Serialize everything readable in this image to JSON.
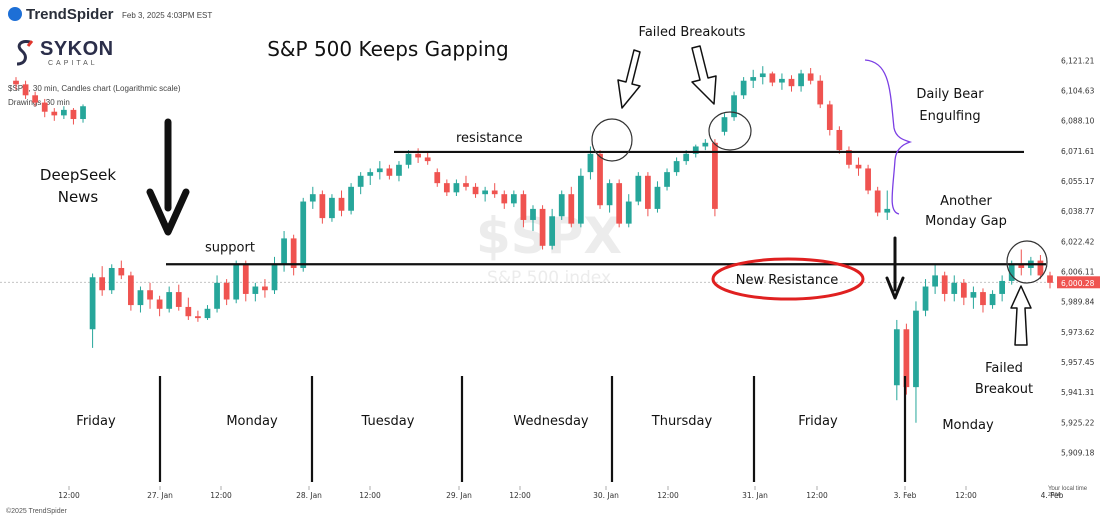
{
  "header": {
    "brand": "TrendSpider",
    "timestamp": "Feb 3, 2025 4:03PM EST",
    "logo_word": "SYKON",
    "logo_sub": "CAPITAL",
    "symbol_line": "$SPX, 30 min, Candles chart (Logarithmic scale)",
    "drawings_line": "Drawings, 30 min",
    "copyright": "©2025 TrendSpider",
    "timezone_label": "Your local time zone"
  },
  "watermark": {
    "ticker": "$SPX",
    "name": "S&P 500 index"
  },
  "chart_data": {
    "type": "candlestick",
    "title": "S&P 500 Keeps Gapping",
    "y_scale": "log",
    "ylim": [
      5902,
      6128
    ],
    "y_ticks": [
      "6,121.21",
      "6,104.63",
      "6,088.10",
      "6,071.61",
      "6,055.17",
      "6,038.77",
      "6,022.42",
      "6,006.11",
      "5,989.84",
      "5,973.62",
      "5,957.45",
      "5,941.31",
      "5,925.22",
      "5,909.18"
    ],
    "x_ticks": [
      "12:00",
      "27. Jan",
      "12:00",
      "28. Jan",
      "12:00",
      "29. Jan",
      "12:00",
      "30. Jan",
      "12:00",
      "31. Jan",
      "12:00",
      "3. Feb",
      "12:00",
      "4. Feb"
    ],
    "last_price": "6,000.28",
    "colors": {
      "up": "#26a69a",
      "down": "#ef5350",
      "annotation": "#111111",
      "circle_red": "#e02020",
      "brace": "#7b3fe4"
    },
    "day_labels": [
      "Friday",
      "Monday",
      "Tuesday",
      "Wednesday",
      "Thursday",
      "Friday",
      "Monday"
    ],
    "levels": [
      {
        "name": "resistance",
        "label": "resistance",
        "price": 6071
      },
      {
        "name": "support",
        "label": "support",
        "price": 6010
      }
    ],
    "annotations": {
      "deepseek": "DeepSeek\nNews",
      "failed_breakouts": "Failed Breakouts",
      "daily_bear": "Daily Bear\nEngulfing",
      "another_gap": "Another\nMonday  Gap",
      "new_resistance": "New Resistance",
      "failed_breakout": "Failed\nBreakout"
    },
    "candles": [
      {
        "o": 6110,
        "h": 6112,
        "l": 6105,
        "c": 6108
      },
      {
        "o": 6108,
        "h": 6110,
        "l": 6100,
        "c": 6102
      },
      {
        "o": 6102,
        "h": 6104,
        "l": 6096,
        "c": 6098
      },
      {
        "o": 6098,
        "h": 6100,
        "l": 6090,
        "c": 6093
      },
      {
        "o": 6093,
        "h": 6095,
        "l": 6088,
        "c": 6091
      },
      {
        "o": 6091,
        "h": 6096,
        "l": 6089,
        "c": 6094
      },
      {
        "o": 6094,
        "h": 6095,
        "l": 6086,
        "c": 6089
      },
      {
        "o": 6089,
        "h": 6097,
        "l": 6087,
        "c": 6096
      },
      {
        "o": 5975,
        "h": 6005,
        "l": 5965,
        "c": 6003
      },
      {
        "o": 6003,
        "h": 6009,
        "l": 5993,
        "c": 5996
      },
      {
        "o": 5996,
        "h": 6010,
        "l": 5994,
        "c": 6008
      },
      {
        "o": 6008,
        "h": 6012,
        "l": 6002,
        "c": 6004
      },
      {
        "o": 6004,
        "h": 6006,
        "l": 5985,
        "c": 5988
      },
      {
        "o": 5988,
        "h": 5998,
        "l": 5984,
        "c": 5996
      },
      {
        "o": 5996,
        "h": 6000,
        "l": 5986,
        "c": 5991
      },
      {
        "o": 5991,
        "h": 5993,
        "l": 5982,
        "c": 5986
      },
      {
        "o": 5986,
        "h": 5998,
        "l": 5984,
        "c": 5995
      },
      {
        "o": 5995,
        "h": 5999,
        "l": 5985,
        "c": 5987
      },
      {
        "o": 5987,
        "h": 5992,
        "l": 5980,
        "c": 5982
      },
      {
        "o": 5982,
        "h": 5985,
        "l": 5979,
        "c": 5981
      },
      {
        "o": 5981,
        "h": 5988,
        "l": 5980,
        "c": 5986
      },
      {
        "o": 5986,
        "h": 6004,
        "l": 5984,
        "c": 6000
      },
      {
        "o": 6000,
        "h": 6002,
        "l": 5988,
        "c": 5991
      },
      {
        "o": 5991,
        "h": 6012,
        "l": 5989,
        "c": 6010
      },
      {
        "o": 6010,
        "h": 6012,
        "l": 5990,
        "c": 5994
      },
      {
        "o": 5994,
        "h": 6000,
        "l": 5990,
        "c": 5998
      },
      {
        "o": 5998,
        "h": 6002,
        "l": 5992,
        "c": 5996
      },
      {
        "o": 5996,
        "h": 6014,
        "l": 5994,
        "c": 6010
      },
      {
        "o": 6010,
        "h": 6028,
        "l": 6006,
        "c": 6024
      },
      {
        "o": 6024,
        "h": 6026,
        "l": 6004,
        "c": 6008
      },
      {
        "o": 6008,
        "h": 6046,
        "l": 6006,
        "c": 6044
      },
      {
        "o": 6044,
        "h": 6052,
        "l": 6040,
        "c": 6048
      },
      {
        "o": 6048,
        "h": 6050,
        "l": 6032,
        "c": 6035
      },
      {
        "o": 6035,
        "h": 6048,
        "l": 6033,
        "c": 6046
      },
      {
        "o": 6046,
        "h": 6050,
        "l": 6036,
        "c": 6039
      },
      {
        "o": 6039,
        "h": 6054,
        "l": 6037,
        "c": 6052
      },
      {
        "o": 6052,
        "h": 6060,
        "l": 6048,
        "c": 6058
      },
      {
        "o": 6058,
        "h": 6062,
        "l": 6053,
        "c": 6060
      },
      {
        "o": 6060,
        "h": 6066,
        "l": 6056,
        "c": 6062
      },
      {
        "o": 6062,
        "h": 6064,
        "l": 6056,
        "c": 6058
      },
      {
        "o": 6058,
        "h": 6066,
        "l": 6055,
        "c": 6064
      },
      {
        "o": 6064,
        "h": 6072,
        "l": 6062,
        "c": 6070
      },
      {
        "o": 6070,
        "h": 6073,
        "l": 6065,
        "c": 6068
      },
      {
        "o": 6068,
        "h": 6071,
        "l": 6064,
        "c": 6066
      },
      {
        "o": 6060,
        "h": 6062,
        "l": 6052,
        "c": 6054
      },
      {
        "o": 6054,
        "h": 6056,
        "l": 6047,
        "c": 6049
      },
      {
        "o": 6049,
        "h": 6056,
        "l": 6047,
        "c": 6054
      },
      {
        "o": 6054,
        "h": 6058,
        "l": 6050,
        "c": 6052
      },
      {
        "o": 6052,
        "h": 6054,
        "l": 6046,
        "c": 6048
      },
      {
        "o": 6048,
        "h": 6052,
        "l": 6044,
        "c": 6050
      },
      {
        "o": 6050,
        "h": 6054,
        "l": 6046,
        "c": 6048
      },
      {
        "o": 6048,
        "h": 6050,
        "l": 6040,
        "c": 6043
      },
      {
        "o": 6043,
        "h": 6050,
        "l": 6041,
        "c": 6048
      },
      {
        "o": 6048,
        "h": 6050,
        "l": 6030,
        "c": 6034
      },
      {
        "o": 6034,
        "h": 6042,
        "l": 6028,
        "c": 6040
      },
      {
        "o": 6040,
        "h": 6042,
        "l": 6018,
        "c": 6020
      },
      {
        "o": 6020,
        "h": 6040,
        "l": 6018,
        "c": 6036
      },
      {
        "o": 6036,
        "h": 6050,
        "l": 6034,
        "c": 6048
      },
      {
        "o": 6048,
        "h": 6052,
        "l": 6030,
        "c": 6032
      },
      {
        "o": 6032,
        "h": 6062,
        "l": 6030,
        "c": 6058
      },
      {
        "o": 6060,
        "h": 6074,
        "l": 6056,
        "c": 6070
      },
      {
        "o": 6070,
        "h": 6072,
        "l": 6040,
        "c": 6042
      },
      {
        "o": 6042,
        "h": 6056,
        "l": 6038,
        "c": 6054
      },
      {
        "o": 6054,
        "h": 6056,
        "l": 6030,
        "c": 6032
      },
      {
        "o": 6032,
        "h": 6048,
        "l": 6030,
        "c": 6044
      },
      {
        "o": 6044,
        "h": 6060,
        "l": 6042,
        "c": 6058
      },
      {
        "o": 6058,
        "h": 6060,
        "l": 6036,
        "c": 6040
      },
      {
        "o": 6040,
        "h": 6055,
        "l": 6038,
        "c": 6052
      },
      {
        "o": 6052,
        "h": 6062,
        "l": 6050,
        "c": 6060
      },
      {
        "o": 6060,
        "h": 6068,
        "l": 6058,
        "c": 6066
      },
      {
        "o": 6066,
        "h": 6072,
        "l": 6064,
        "c": 6070
      },
      {
        "o": 6070,
        "h": 6075,
        "l": 6068,
        "c": 6074
      },
      {
        "o": 6074,
        "h": 6078,
        "l": 6072,
        "c": 6076
      },
      {
        "o": 6076,
        "h": 6078,
        "l": 6036,
        "c": 6040
      },
      {
        "o": 6082,
        "h": 6092,
        "l": 6080,
        "c": 6090
      },
      {
        "o": 6090,
        "h": 6104,
        "l": 6088,
        "c": 6102
      },
      {
        "o": 6102,
        "h": 6112,
        "l": 6100,
        "c": 6110
      },
      {
        "o": 6110,
        "h": 6116,
        "l": 6106,
        "c": 6112
      },
      {
        "o": 6112,
        "h": 6118,
        "l": 6108,
        "c": 6114
      },
      {
        "o": 6114,
        "h": 6115,
        "l": 6107,
        "c": 6109
      },
      {
        "o": 6109,
        "h": 6114,
        "l": 6105,
        "c": 6111
      },
      {
        "o": 6111,
        "h": 6113,
        "l": 6104,
        "c": 6107
      },
      {
        "o": 6107,
        "h": 6116,
        "l": 6104,
        "c": 6114
      },
      {
        "o": 6114,
        "h": 6117,
        "l": 6108,
        "c": 6110
      },
      {
        "o": 6110,
        "h": 6113,
        "l": 6095,
        "c": 6097
      },
      {
        "o": 6097,
        "h": 6099,
        "l": 6080,
        "c": 6083
      },
      {
        "o": 6083,
        "h": 6085,
        "l": 6070,
        "c": 6072
      },
      {
        "o": 6072,
        "h": 6074,
        "l": 6062,
        "c": 6064
      },
      {
        "o": 6064,
        "h": 6068,
        "l": 6058,
        "c": 6062
      },
      {
        "o": 6062,
        "h": 6064,
        "l": 6048,
        "c": 6050
      },
      {
        "o": 6050,
        "h": 6052,
        "l": 6036,
        "c": 6038
      },
      {
        "o": 6038,
        "h": 6050,
        "l": 6034,
        "c": 6040
      },
      {
        "o": 5945,
        "h": 5980,
        "l": 5937,
        "c": 5975
      },
      {
        "o": 5975,
        "h": 5978,
        "l": 5940,
        "c": 5944
      },
      {
        "o": 5944,
        "h": 5990,
        "l": 5925,
        "c": 5985
      },
      {
        "o": 5985,
        "h": 6002,
        "l": 5982,
        "c": 5998
      },
      {
        "o": 5998,
        "h": 6010,
        "l": 5994,
        "c": 6004
      },
      {
        "o": 6004,
        "h": 6006,
        "l": 5990,
        "c": 5994
      },
      {
        "o": 5994,
        "h": 6004,
        "l": 5990,
        "c": 6000
      },
      {
        "o": 6000,
        "h": 6002,
        "l": 5988,
        "c": 5992
      },
      {
        "o": 5992,
        "h": 5998,
        "l": 5986,
        "c": 5995
      },
      {
        "o": 5995,
        "h": 5997,
        "l": 5984,
        "c": 5988
      },
      {
        "o": 5988,
        "h": 5996,
        "l": 5986,
        "c": 5994
      },
      {
        "o": 5994,
        "h": 6004,
        "l": 5990,
        "c": 6001
      },
      {
        "o": 6001,
        "h": 6012,
        "l": 5999,
        "c": 6010
      },
      {
        "o": 6010,
        "h": 6018,
        "l": 6004,
        "c": 6008
      },
      {
        "o": 6008,
        "h": 6014,
        "l": 6004,
        "c": 6012
      },
      {
        "o": 6012,
        "h": 6015,
        "l": 6002,
        "c": 6004
      },
      {
        "o": 6004,
        "h": 6006,
        "l": 5997,
        "c": 6000
      }
    ]
  }
}
